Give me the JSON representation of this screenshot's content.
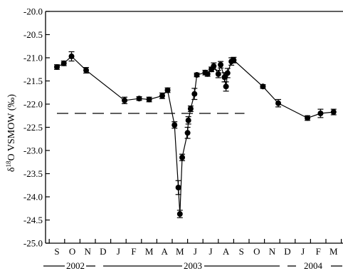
{
  "chart_data": {
    "type": "scatter",
    "title": "",
    "ylabel": {
      "prefix": "δ",
      "sup": "18",
      "suffix": "O VSMOW (‰)"
    },
    "xlabel": "",
    "ylim": [
      -25.0,
      -20.0
    ],
    "y_ticks": [
      "-20.0",
      "-20.5",
      "-21.0",
      "-21.5",
      "-22.0",
      "-22.5",
      "-23.0",
      "-23.5",
      "-24.0",
      "-24.5",
      "-25.0"
    ],
    "x_ticks": [
      "S",
      "O",
      "N",
      "D",
      "J",
      "F",
      "M",
      "A",
      "M",
      "J",
      "J",
      "A",
      "S",
      "O",
      "N",
      "D",
      "J",
      "F",
      "M",
      "A"
    ],
    "year_labels": [
      "2002",
      "2003",
      "2004"
    ],
    "grid": false,
    "reference_line": {
      "y": -22.2,
      "style": "dashed",
      "x_start_month": 0,
      "x_end_month": 12.2
    },
    "series": [
      {
        "style": "line+markers with error bars",
        "color": "#000000",
        "points": [
          {
            "x": 0.0,
            "y": -21.2,
            "err": 0.05
          },
          {
            "x": 0.45,
            "y": -21.12,
            "err": 0.05
          },
          {
            "x": 0.95,
            "y": -20.97,
            "err": 0.1
          },
          {
            "x": 1.9,
            "y": -21.27,
            "err": 0.06
          },
          {
            "x": 4.4,
            "y": -21.92,
            "err": 0.07
          },
          {
            "x": 5.35,
            "y": -21.88,
            "err": 0.04
          },
          {
            "x": 6.0,
            "y": -21.9,
            "err": 0.05
          },
          {
            "x": 6.85,
            "y": -21.82,
            "err": 0.06
          },
          {
            "x": 7.2,
            "y": -21.7,
            "err": 0.05
          },
          {
            "x": 7.65,
            "y": -22.45,
            "err": 0.07
          },
          {
            "x": 7.9,
            "y": -23.8,
            "err": 0.15
          },
          {
            "x": 8.0,
            "y": -24.37,
            "err": 0.08
          },
          {
            "x": 8.15,
            "y": -23.15,
            "err": 0.07
          },
          {
            "x": 8.5,
            "y": -22.62,
            "err": 0.12
          },
          {
            "x": 8.55,
            "y": -22.35,
            "err": 0.08
          },
          {
            "x": 8.7,
            "y": -22.1,
            "err": 0.06
          },
          {
            "x": 8.95,
            "y": -21.78,
            "err": 0.12
          },
          {
            "x": 9.1,
            "y": -21.37,
            "err": 0.04
          },
          {
            "x": 9.65,
            "y": -21.32,
            "err": 0.05
          },
          {
            "x": 9.8,
            "y": -21.35,
            "err": 0.05
          },
          {
            "x": 10.05,
            "y": -21.25,
            "err": 0.05
          },
          {
            "x": 10.2,
            "y": -21.18,
            "err": 0.07
          },
          {
            "x": 10.5,
            "y": -21.35,
            "err": 0.08
          },
          {
            "x": 10.65,
            "y": -21.15,
            "err": 0.07
          },
          {
            "x": 10.9,
            "y": -21.42,
            "err": 0.1
          },
          {
            "x": 11.0,
            "y": -21.62,
            "err": 0.1
          },
          {
            "x": 11.1,
            "y": -21.33,
            "err": 0.1
          },
          {
            "x": 11.35,
            "y": -21.08,
            "err": 0.08
          },
          {
            "x": 11.5,
            "y": -21.05,
            "err": 0.06
          },
          {
            "x": 13.4,
            "y": -21.62,
            "err": 0.04
          },
          {
            "x": 14.4,
            "y": -21.98,
            "err": 0.08
          },
          {
            "x": 16.3,
            "y": -22.3,
            "err": 0.05
          },
          {
            "x": 17.15,
            "y": -22.2,
            "err": 0.09
          },
          {
            "x": 18.0,
            "y": -22.17,
            "err": 0.06
          }
        ]
      }
    ]
  }
}
